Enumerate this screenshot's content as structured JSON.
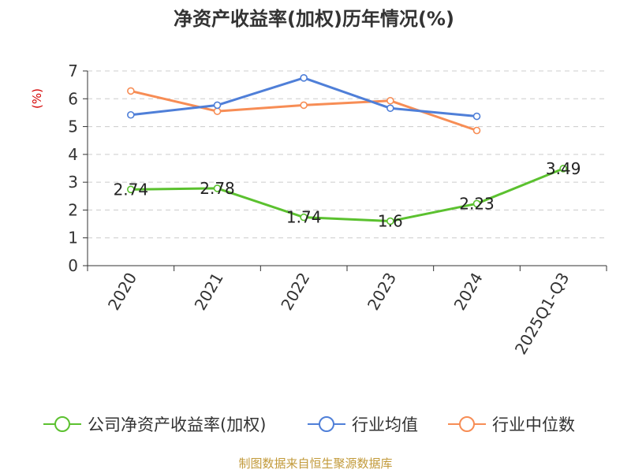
{
  "chart_data": {
    "type": "line",
    "title": "净资产收益率(加权)历年情况(%)",
    "ylabel": "(%)",
    "categories": [
      "2020",
      "2021",
      "2022",
      "2023",
      "2024",
      "2025Q1-Q3"
    ],
    "ylim": [
      0,
      7
    ],
    "yticks": [
      0,
      1,
      2,
      3,
      4,
      5,
      6,
      7
    ],
    "grid": true,
    "legend_position": "bottom",
    "series": [
      {
        "name": "公司净资产收益率(加权)",
        "color": "#5bc12f",
        "values": [
          2.74,
          2.78,
          1.74,
          1.6,
          2.23,
          3.49
        ],
        "labels": [
          "2.74",
          "2.78",
          "1.74",
          "1.6",
          "2.23",
          "3.49"
        ]
      },
      {
        "name": "行业均值",
        "color": "#4f7fd8",
        "values": [
          5.42,
          5.77,
          6.75,
          5.66,
          5.37,
          null
        ]
      },
      {
        "name": "行业中位数",
        "color": "#f78d55",
        "values": [
          6.28,
          5.55,
          5.77,
          5.93,
          4.86,
          null
        ]
      }
    ]
  },
  "source": "制图数据来自恒生聚源数据库"
}
